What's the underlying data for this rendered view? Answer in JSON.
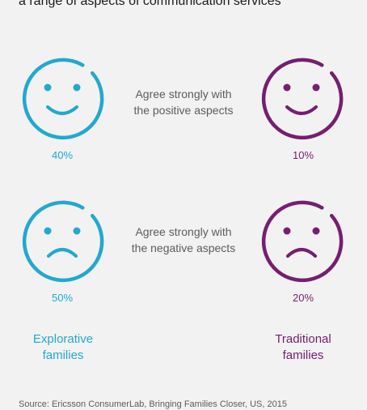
{
  "heading": "a range of aspects of communication services",
  "colors": {
    "explorative": "#23a8cf",
    "traditional": "#761e6f",
    "background": "#f2f2f2",
    "caption": "#5c5c5c"
  },
  "rows": [
    {
      "caption_line1": "Agree strongly with",
      "caption_line2": "the positive aspects",
      "mood": "happy",
      "explorative_value": "40%",
      "traditional_value": "10%"
    },
    {
      "caption_line1": "Agree strongly with",
      "caption_line2": "the negative aspects",
      "mood": "sad",
      "explorative_value": "50%",
      "traditional_value": "20%"
    }
  ],
  "groups": {
    "explorative_line1": "Explorative",
    "explorative_line2": "families",
    "traditional_line1": "Traditional",
    "traditional_line2": "families"
  },
  "source": "Source: Ericsson ConsumerLab, Bringing Families Closer, US, 2015"
}
